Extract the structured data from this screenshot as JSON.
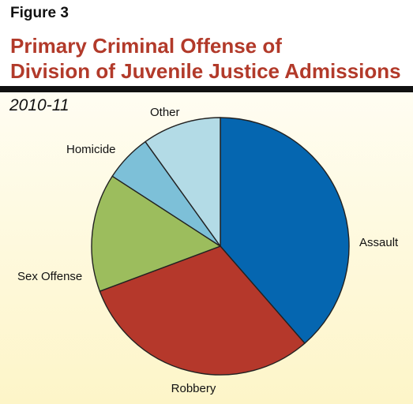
{
  "figure_label": "Figure 3",
  "title_lines": [
    "Primary Criminal Offense of",
    "Division of Juvenile Justice Admissions"
  ],
  "colors": {
    "title": "#b23a2a",
    "rule": "#111111",
    "slice_border": "#222222",
    "label_text": "#111111"
  },
  "chart_data": {
    "type": "pie",
    "title": "Primary Criminal Offense of Division of Juvenile Justice Admissions",
    "subtitle": "2010-11",
    "start_angle_deg": 0,
    "direction": "clockwise",
    "legend": "none",
    "slices": [
      {
        "label": "Assault",
        "value": 39,
        "color": "#0566b0"
      },
      {
        "label": "Robbery",
        "value": 31,
        "color": "#b5382b"
      },
      {
        "label": "Sex Offense",
        "value": 15,
        "color": "#9cbd5d"
      },
      {
        "label": "Homicide",
        "value": 6,
        "color": "#7dc0d8"
      },
      {
        "label": "Other",
        "value": 10,
        "color": "#b3dbe6"
      }
    ]
  }
}
